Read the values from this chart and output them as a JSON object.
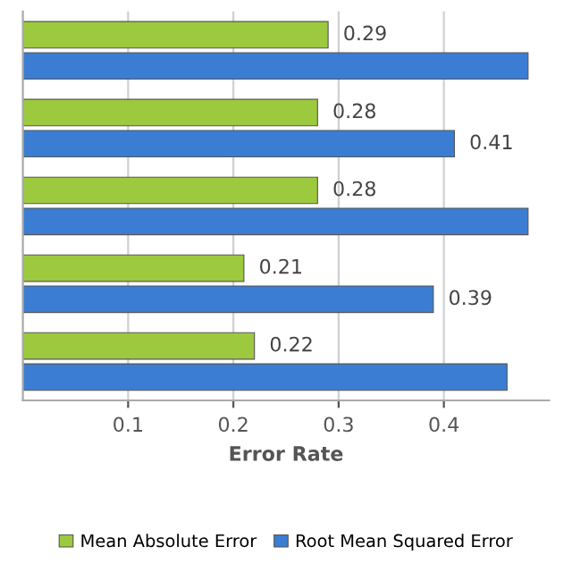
{
  "chart_data": {
    "type": "bar",
    "orientation": "horizontal",
    "xlabel": "Error Rate",
    "categories": [
      null,
      null,
      null,
      null,
      null
    ],
    "series": [
      {
        "name": "Mean Absolute Error",
        "color": "#9cc93e",
        "values": [
          0.29,
          0.28,
          0.28,
          0.21,
          0.22
        ],
        "value_labels": [
          "0.29",
          "0.28",
          "0.28",
          "0.21",
          "0.22"
        ]
      },
      {
        "name": "Root Mean Squared Error",
        "color": "#3b7dd2",
        "values": [
          0.48,
          0.41,
          0.48,
          0.39,
          0.46
        ],
        "value_labels": [
          null,
          "0.41",
          null,
          "0.39",
          null
        ]
      }
    ],
    "xlim": [
      0,
      0.5
    ],
    "xticks": [
      0.1,
      0.2,
      0.3,
      0.4
    ],
    "tick_labels": "x",
    "grid": "x",
    "legend": "bottom"
  }
}
